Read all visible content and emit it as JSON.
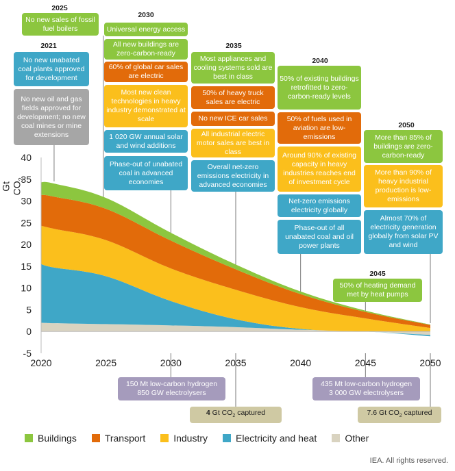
{
  "chart_data": {
    "type": "area",
    "stacked": true,
    "ylabel": "Gt CO2",
    "ylim": [
      -5,
      40
    ],
    "yticks": [
      "-5",
      "0",
      "5",
      "10",
      "15",
      "20",
      "25",
      "30",
      "35",
      "40"
    ],
    "xticks": [
      "2020",
      "2025",
      "2030",
      "2035",
      "2040",
      "2045",
      "2050"
    ],
    "x": [
      2020,
      2021,
      2025,
      2030,
      2035,
      2040,
      2045,
      2050
    ],
    "series": [
      {
        "name": "Other",
        "color": "#d9d3c0",
        "values": [
          2.0,
          1.9,
          1.7,
          1.4,
          1.0,
          0.4,
          0.0,
          -0.8
        ]
      },
      {
        "name": "Electricity and heat",
        "color": "#3fa7c7",
        "values": [
          13.5,
          12.8,
          11.0,
          5.6,
          1.8,
          0.2,
          0.0,
          -0.3
        ]
      },
      {
        "name": "Industry",
        "color": "#fbbf1c",
        "values": [
          8.8,
          8.9,
          8.3,
          7.5,
          6.8,
          5.0,
          3.0,
          0.8
        ]
      },
      {
        "name": "Transport",
        "color": "#e26b0a",
        "values": [
          7.1,
          7.4,
          7.2,
          6.4,
          4.7,
          3.0,
          1.5,
          0.7
        ]
      },
      {
        "name": "Buildings",
        "color": "#8cc63f",
        "values": [
          2.9,
          3.0,
          2.5,
          1.8,
          1.1,
          0.6,
          0.3,
          0.1
        ]
      }
    ]
  },
  "legend": [
    {
      "label": "Buildings",
      "color": "#8cc63f"
    },
    {
      "label": "Transport",
      "color": "#e26b0a"
    },
    {
      "label": "Industry",
      "color": "#fbbf1c"
    },
    {
      "label": "Electricity and heat",
      "color": "#3fa7c7"
    },
    {
      "label": "Other",
      "color": "#d9d3c0"
    }
  ],
  "years": {
    "y2025": "2025",
    "y2030": "2030",
    "y2021": "2021",
    "y2035": "2035",
    "y2040": "2040",
    "y2050": "2050",
    "y2045": "2045"
  },
  "milestones": {
    "m2025_boilers": "No new sales of fossil fuel boilers",
    "m2021_coal": "No new unabated coal plants approved for development",
    "m2021_oilgas": "No new oil and gas fields approved for development; no new coal mines or mine extensions",
    "m2030_access": "Universal energy access",
    "m2030_buildings": "All new buildings are zero-carbon-ready",
    "m2030_cars": "60% of global car sales are electric",
    "m2030_industry": "Most new clean technologies in heavy industry demonstrated at scale",
    "m2030_solar": "1 020 GW annual solar and wind additions",
    "m2030_coal": "Phase-out of unabated coal in advanced economies",
    "m2035_appliances": "Most appliances and cooling systems sold are best in class",
    "m2035_truck": "50% of heavy truck sales are electric",
    "m2035_ice": "No new ICE car sales",
    "m2035_motor": "All industrial electric motor sales are best in class",
    "m2035_netzero": "Overall net-zero emissions electricity in advanced economies",
    "m2040_retrofit": "50% of existing buildings retrofitted to zero-carbon-ready levels",
    "m2040_aviation": "50% of fuels used in aviation are low-emissions",
    "m2040_industry": "Around 90% of existing capacity in heavy industries reaches end of investment cycle",
    "m2040_netzero": "Net-zero emissions electricity globally",
    "m2040_coaloil": "Phase-out of all unabated coal and oil power plants",
    "m2050_buildings": "More than 85% of buildings are zero-carbon-ready",
    "m2050_industry": "More than 90% of heavy industrial production is low-emissions",
    "m2050_solar": "Almost 70% of electricity generation globally from solar PV and wind",
    "m2045_heat": "50% of heating demand met by heat pumps",
    "h2030_line1": "150 Mt low-carbon hydrogen",
    "h2030_line2": "850 GW electrolysers",
    "h2045_line1": "435 Mt low-carbon hydrogen",
    "h2045_line2": "3 000 GW electrolysers",
    "c2035_num": "4",
    "c2035_pre": "Gt CO",
    "c2035_sub": "2",
    "c2035_post": " captured",
    "c2050_pre": "7.6 Gt CO",
    "c2050_sub": "2",
    "c2050_post": " captured"
  },
  "ylabel_main": "Gt CO",
  "ylabel_sub": "2",
  "credit": "IEA. All rights reserved."
}
